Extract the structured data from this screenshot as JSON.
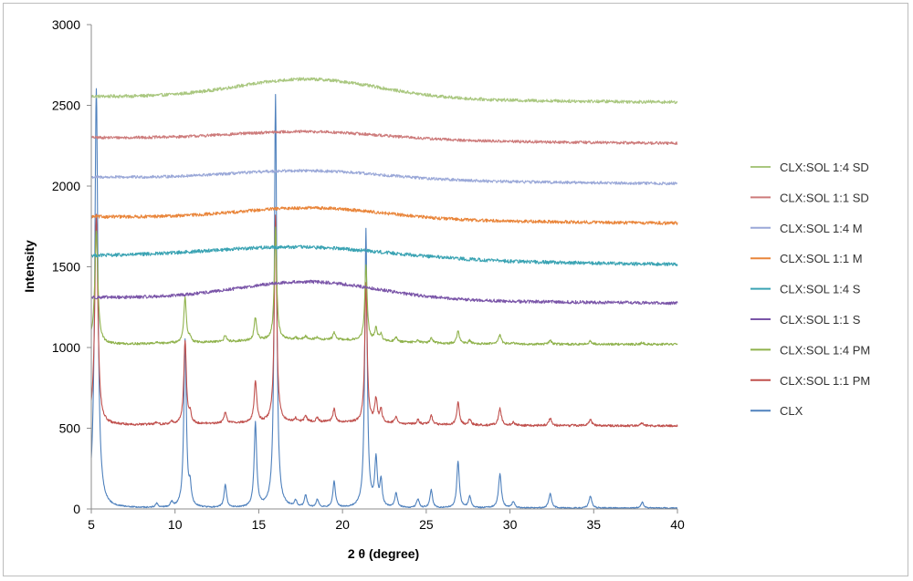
{
  "chart_data": {
    "type": "line",
    "xlabel": "2 θ (degree)",
    "ylabel": "Intensity",
    "xlim": [
      5,
      40
    ],
    "ylim": [
      0,
      3000
    ],
    "x_ticks": [
      5,
      10,
      15,
      20,
      25,
      30,
      35,
      40
    ],
    "y_ticks": [
      0,
      500,
      1000,
      1500,
      2000,
      2500,
      3000
    ],
    "grid": false,
    "legend_position": "right",
    "clx_peaks": [
      {
        "x": 5.3,
        "h": 2600,
        "w": 0.11
      },
      {
        "x": 8.9,
        "h": 25,
        "w": 0.09
      },
      {
        "x": 9.8,
        "h": 30,
        "w": 0.09
      },
      {
        "x": 10.6,
        "h": 1040,
        "w": 0.09
      },
      {
        "x": 10.9,
        "h": 110,
        "w": 0.08
      },
      {
        "x": 13.0,
        "h": 140,
        "w": 0.09
      },
      {
        "x": 14.8,
        "h": 520,
        "w": 0.09
      },
      {
        "x": 16.0,
        "h": 2560,
        "w": 0.085
      },
      {
        "x": 17.2,
        "h": 40,
        "w": 0.08
      },
      {
        "x": 17.8,
        "h": 75,
        "w": 0.09
      },
      {
        "x": 18.5,
        "h": 50,
        "w": 0.09
      },
      {
        "x": 19.5,
        "h": 160,
        "w": 0.09
      },
      {
        "x": 21.4,
        "h": 1720,
        "w": 0.085
      },
      {
        "x": 22.0,
        "h": 290,
        "w": 0.09
      },
      {
        "x": 22.3,
        "h": 160,
        "w": 0.08
      },
      {
        "x": 23.2,
        "h": 90,
        "w": 0.09
      },
      {
        "x": 24.5,
        "h": 55,
        "w": 0.09
      },
      {
        "x": 25.3,
        "h": 110,
        "w": 0.09
      },
      {
        "x": 26.9,
        "h": 290,
        "w": 0.09
      },
      {
        "x": 27.6,
        "h": 70,
        "w": 0.09
      },
      {
        "x": 29.4,
        "h": 210,
        "w": 0.1
      },
      {
        "x": 30.2,
        "h": 40,
        "w": 0.09
      },
      {
        "x": 32.4,
        "h": 90,
        "w": 0.1
      },
      {
        "x": 34.8,
        "h": 75,
        "w": 0.1
      },
      {
        "x": 37.9,
        "h": 35,
        "w": 0.1
      }
    ],
    "series": [
      {
        "name": "CLX:SOL 1:4 SD",
        "color": "#a9c77f",
        "kind": "amorphous",
        "offset": 2555,
        "end": 2520,
        "halo": 120,
        "halo_center": 18,
        "halo_width": 4.2,
        "noise": 10
      },
      {
        "name": "CLX:SOL 1:1 SD",
        "color": "#cd7b7b",
        "kind": "amorphous",
        "offset": 2300,
        "end": 2265,
        "halo": 50,
        "halo_center": 18,
        "halo_width": 4.5,
        "noise": 9
      },
      {
        "name": "CLX:SOL 1:4 M",
        "color": "#9aa8d8",
        "kind": "amorphous",
        "offset": 2055,
        "end": 2015,
        "halo": 55,
        "halo_center": 18,
        "halo_width": 4.5,
        "noise": 9
      },
      {
        "name": "CLX:SOL 1:1 M",
        "color": "#e9853a",
        "kind": "amorphous",
        "offset": 1810,
        "end": 1770,
        "halo": 70,
        "halo_center": 18.2,
        "halo_width": 4.3,
        "noise": 10
      },
      {
        "name": "CLX:SOL 1:4 S",
        "color": "#3aa3b3",
        "kind": "amorphous",
        "offset": 1565,
        "end": 1515,
        "halo": 75,
        "halo_center": 17.5,
        "halo_width": 5.5,
        "noise": 11
      },
      {
        "name": "CLX:SOL 1:1 S",
        "color": "#7a55a8",
        "kind": "amorphous",
        "offset": 1310,
        "end": 1275,
        "halo": 110,
        "halo_center": 18,
        "halo_width": 4.2,
        "noise": 10
      },
      {
        "name": "CLX:SOL 1:4 PM",
        "color": "#8fb24c",
        "kind": "crystalline",
        "offset": 1020,
        "end": 1020,
        "scale": 0.27,
        "halo": 30,
        "noise": 7
      },
      {
        "name": "CLX:SOL 1:1 PM",
        "color": "#c0504d",
        "kind": "crystalline",
        "offset": 520,
        "end": 515,
        "scale": 0.5,
        "halo": 20,
        "noise": 7
      },
      {
        "name": "CLX",
        "color": "#4f81bd",
        "kind": "crystalline",
        "offset": 5,
        "end": 5,
        "scale": 1.0,
        "halo": 0,
        "noise": 4
      }
    ]
  }
}
